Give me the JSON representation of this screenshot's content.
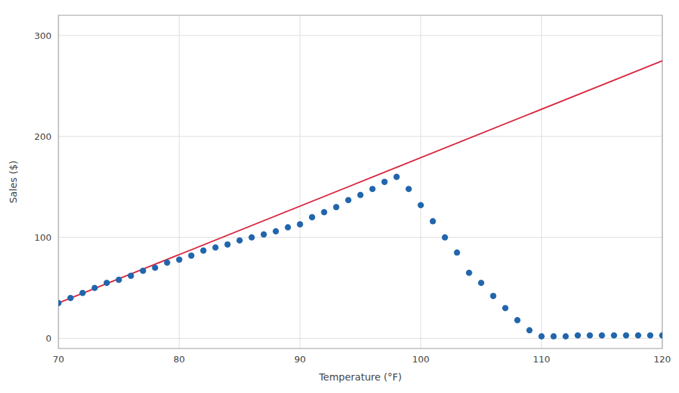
{
  "chart_data": {
    "type": "scatter",
    "xlabel": "Temperature (°F)",
    "ylabel": "Sales ($)",
    "xlim": [
      70,
      120
    ],
    "ylim": [
      -10,
      320
    ],
    "xticks": [
      70,
      80,
      90,
      100,
      110,
      120
    ],
    "yticks": [
      0,
      100,
      200,
      300
    ],
    "grid": true,
    "series": [
      {
        "type": "line",
        "color": "#d9263e",
        "x": [
          70,
          120
        ],
        "values": [
          35,
          275
        ]
      },
      {
        "type": "scatter",
        "color": "#2166ac",
        "x": [
          70,
          71,
          72,
          73,
          74,
          75,
          76,
          77,
          78,
          79,
          80,
          81,
          82,
          83,
          84,
          85,
          86,
          87,
          88,
          89,
          90,
          91,
          92,
          93,
          94,
          95,
          96,
          97,
          98,
          99,
          100,
          101,
          102,
          103,
          104,
          105,
          106,
          107,
          108,
          109,
          110,
          111,
          112,
          113,
          114,
          115,
          116,
          117,
          118,
          119,
          120
        ],
        "values": [
          35,
          40,
          45,
          50,
          55,
          58,
          62,
          67,
          70,
          75,
          78,
          82,
          87,
          90,
          93,
          97,
          100,
          103,
          106,
          110,
          113,
          120,
          125,
          130,
          137,
          142,
          148,
          155,
          160,
          148,
          132,
          116,
          100,
          85,
          65,
          55,
          42,
          30,
          18,
          8,
          2,
          2,
          2,
          3,
          3,
          3,
          3,
          3,
          3,
          3,
          3
        ]
      }
    ]
  }
}
